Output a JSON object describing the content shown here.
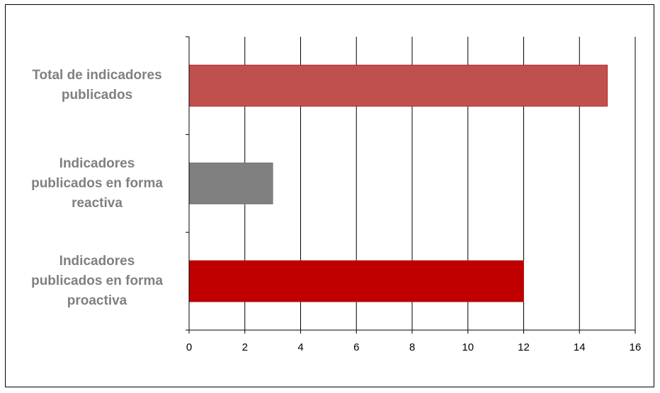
{
  "chart_data": {
    "type": "bar",
    "orientation": "horizontal",
    "title": "",
    "xlabel": "",
    "ylabel": "",
    "categories": [
      [
        "Total de indicadores",
        "publicados"
      ],
      [
        "Indicadores",
        "publicados en forma",
        "reactiva"
      ],
      [
        "Indicadores",
        "publicados en forma",
        "proactiva"
      ]
    ],
    "values": [
      15,
      3,
      12
    ],
    "colors": [
      "#C0504D",
      "#808080",
      "#C00000"
    ],
    "xlim": [
      0,
      16
    ],
    "xticks": [
      "0",
      "2",
      "4",
      "6",
      "8",
      "10",
      "12",
      "14",
      "16"
    ],
    "grid": "vertical",
    "legend": "none"
  }
}
